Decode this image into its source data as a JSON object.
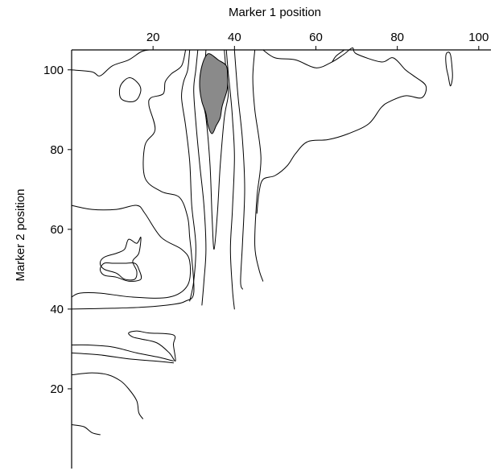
{
  "chart_data": {
    "type": "contour",
    "xlabel": "Marker 1 position",
    "ylabel": "Marker 2 position",
    "xlim": [
      0,
      103
    ],
    "ylim": [
      0,
      105
    ],
    "x_axis_position": "top",
    "x_ticks": [
      20,
      40,
      60,
      80,
      100
    ],
    "y_ticks": [
      20,
      40,
      60,
      80,
      100
    ],
    "grid": false,
    "peak_fill_color": "#8a8a8a",
    "contours": [
      {
        "name": "band-top-left",
        "closed": false,
        "points": [
          [
            0,
            100
          ],
          [
            5,
            99.5
          ],
          [
            7,
            98.5
          ],
          [
            10,
            101
          ],
          [
            14,
            102.5
          ],
          [
            17,
            104.5
          ],
          [
            19,
            105
          ]
        ]
      },
      {
        "name": "band-left-outer",
        "closed": false,
        "points": [
          [
            28,
            105
          ],
          [
            27,
            101
          ],
          [
            24.5,
            99
          ],
          [
            23,
            97
          ],
          [
            22.5,
            94
          ],
          [
            19.5,
            93
          ],
          [
            19,
            91
          ],
          [
            20.5,
            85
          ],
          [
            18,
            81
          ],
          [
            18,
            73
          ],
          [
            22,
            69.5
          ],
          [
            26.5,
            68
          ],
          [
            28.5,
            63
          ],
          [
            29,
            58
          ],
          [
            29.5,
            53
          ],
          [
            30,
            44
          ],
          [
            28,
            42
          ],
          [
            25,
            41.2
          ],
          [
            18,
            40.5
          ],
          [
            10,
            40.2
          ],
          [
            0,
            40
          ]
        ]
      },
      {
        "name": "band-left-inner",
        "closed": false,
        "points": [
          [
            0,
            43
          ],
          [
            2,
            44
          ],
          [
            7,
            44
          ],
          [
            15,
            43
          ],
          [
            24,
            43
          ],
          [
            28.5,
            46
          ],
          [
            29,
            52
          ],
          [
            27,
            55
          ],
          [
            22,
            58
          ],
          [
            18,
            64
          ],
          [
            16,
            66
          ],
          [
            11,
            65
          ],
          [
            5,
            65
          ],
          [
            0,
            66
          ]
        ]
      },
      {
        "name": "small-loop-left",
        "closed": true,
        "points": [
          [
            12,
            96
          ],
          [
            14,
            98
          ],
          [
            16,
            97
          ],
          [
            17,
            95
          ],
          [
            16,
            92.5
          ],
          [
            14,
            92
          ],
          [
            12,
            93
          ]
        ]
      },
      {
        "name": "band-mid-left-outer",
        "closed": false,
        "points": [
          [
            29,
            105
          ],
          [
            28.5,
            100
          ],
          [
            27.5,
            97
          ],
          [
            27,
            93
          ],
          [
            28,
            86
          ],
          [
            29,
            77
          ],
          [
            29.5,
            66
          ],
          [
            30.5,
            56
          ],
          [
            30,
            47
          ],
          [
            29,
            42
          ]
        ]
      },
      {
        "name": "band-mid-left-inner",
        "closed": false,
        "points": [
          [
            31,
            105
          ],
          [
            30.5,
            100
          ],
          [
            30,
            95
          ],
          [
            30.5,
            87
          ],
          [
            31.5,
            76
          ],
          [
            32.5,
            66
          ],
          [
            33,
            55
          ],
          [
            32.5,
            47
          ],
          [
            32,
            41
          ]
        ]
      },
      {
        "name": "band-center-left",
        "closed": false,
        "points": [
          [
            33,
            105
          ],
          [
            32.5,
            98
          ],
          [
            32,
            93
          ],
          [
            33,
            88
          ],
          [
            34,
            76
          ],
          [
            34.5,
            63
          ],
          [
            35,
            55
          ],
          [
            35.8,
            64
          ],
          [
            36.5,
            76
          ],
          [
            37.5,
            88
          ],
          [
            38.5,
            94
          ],
          [
            38,
            99
          ],
          [
            37.5,
            105
          ]
        ]
      },
      {
        "name": "band-center-right-outer",
        "closed": false,
        "points": [
          [
            38,
            105
          ],
          [
            38.5,
            99
          ],
          [
            39,
            94
          ],
          [
            39.5,
            88
          ],
          [
            40,
            78
          ],
          [
            39.5,
            65
          ],
          [
            39,
            55
          ],
          [
            39.5,
            45
          ],
          [
            40,
            40
          ]
        ]
      },
      {
        "name": "band-center-right-inner",
        "closed": false,
        "points": [
          [
            40,
            105
          ],
          [
            40.5,
            98
          ],
          [
            41,
            92
          ],
          [
            42,
            82
          ],
          [
            42.5,
            70
          ],
          [
            42,
            57
          ],
          [
            41.5,
            47
          ],
          [
            42,
            45
          ]
        ]
      },
      {
        "name": "band-right-edge",
        "closed": false,
        "points": [
          [
            45,
            105
          ],
          [
            44.5,
            98
          ],
          [
            45,
            90
          ],
          [
            46.5,
            78
          ],
          [
            45.5,
            68
          ],
          [
            45,
            56
          ],
          [
            46,
            50
          ],
          [
            47,
            47
          ]
        ]
      },
      {
        "name": "band-right-large",
        "closed": false,
        "points": [
          [
            47,
            105
          ],
          [
            50,
            103
          ],
          [
            55,
            102.5
          ],
          [
            60,
            100.5
          ],
          [
            64,
            102
          ],
          [
            67,
            104
          ],
          [
            69,
            105.5
          ],
          [
            70,
            104
          ],
          [
            76,
            102
          ],
          [
            79,
            103
          ],
          [
            82,
            100
          ],
          [
            84,
            98.5
          ],
          [
            87,
            96
          ],
          [
            86,
            93
          ],
          [
            82,
            93.5
          ],
          [
            78,
            92
          ],
          [
            76,
            90.5
          ],
          [
            73,
            86.5
          ],
          [
            68,
            84
          ],
          [
            63,
            82.5
          ],
          [
            58,
            82
          ],
          [
            55,
            79
          ],
          [
            53,
            76
          ],
          [
            50,
            73.5
          ],
          [
            47,
            72.5
          ],
          [
            46,
            69
          ],
          [
            45.5,
            64
          ]
        ]
      },
      {
        "name": "line-right-top",
        "closed": false,
        "points": [
          [
            67,
            105
          ],
          [
            65,
            103.5
          ],
          [
            64,
            102
          ]
        ]
      },
      {
        "name": "small-loop-right",
        "closed": true,
        "points": [
          [
            92,
            104
          ],
          [
            93,
            104
          ],
          [
            93.5,
            100
          ],
          [
            93.5,
            97.5
          ],
          [
            93,
            96
          ],
          [
            92.5,
            98.5
          ],
          [
            92,
            101
          ]
        ]
      },
      {
        "name": "loop-left-triangle",
        "closed": true,
        "points": [
          [
            7,
            51.5
          ],
          [
            8,
            53
          ],
          [
            11,
            54
          ],
          [
            13,
            55
          ],
          [
            14,
            57.5
          ],
          [
            16,
            56.5
          ],
          [
            17,
            58
          ],
          [
            16.5,
            54
          ],
          [
            15,
            52
          ],
          [
            16,
            49.5
          ],
          [
            15.5,
            47.5
          ],
          [
            13,
            47.5
          ],
          [
            11,
            49
          ],
          [
            8,
            50
          ]
        ]
      },
      {
        "name": "loop-left-lower",
        "closed": true,
        "points": [
          [
            7,
            50
          ],
          [
            8,
            48.5
          ],
          [
            11,
            48
          ],
          [
            14,
            47
          ],
          [
            17,
            47.5
          ],
          [
            16.5,
            50
          ],
          [
            15.5,
            51.5
          ],
          [
            13,
            51.5
          ],
          [
            10,
            51.5
          ],
          [
            8,
            51.5
          ]
        ]
      },
      {
        "name": "band-30-upper",
        "closed": false,
        "points": [
          [
            0,
            31
          ],
          [
            4,
            31
          ],
          [
            10,
            30.5
          ],
          [
            16,
            29
          ],
          [
            21,
            28
          ],
          [
            25,
            27
          ]
        ]
      },
      {
        "name": "band-30-lower",
        "closed": false,
        "points": [
          [
            0,
            29
          ],
          [
            7,
            28.5
          ],
          [
            14,
            27.5
          ],
          [
            20,
            27
          ],
          [
            25,
            26.5
          ]
        ]
      },
      {
        "name": "loop-30-right",
        "closed": true,
        "points": [
          [
            14,
            34
          ],
          [
            16,
            34.5
          ],
          [
            19,
            34
          ],
          [
            25,
            33.5
          ],
          [
            25,
            31
          ],
          [
            25.5,
            27
          ],
          [
            24,
            29
          ],
          [
            21,
            31.5
          ],
          [
            17,
            32.5
          ],
          [
            15,
            33
          ]
        ]
      },
      {
        "name": "band-24",
        "closed": false,
        "points": [
          [
            0,
            23.5
          ],
          [
            5,
            24
          ],
          [
            9,
            23.5
          ],
          [
            12,
            22
          ],
          [
            14,
            20
          ],
          [
            16,
            17
          ],
          [
            16.5,
            14
          ],
          [
            17.5,
            12.5
          ]
        ]
      },
      {
        "name": "band-11",
        "closed": false,
        "points": [
          [
            0,
            11
          ],
          [
            3,
            10.5
          ],
          [
            5,
            9
          ],
          [
            7,
            8.5
          ]
        ]
      }
    ],
    "peak_region": {
      "name": "peak-core",
      "closed": true,
      "points": [
        [
          33,
          103.5
        ],
        [
          34,
          104
        ],
        [
          36,
          102.5
        ],
        [
          38,
          101
        ],
        [
          38.3,
          98
        ],
        [
          38.2,
          95
        ],
        [
          37,
          91
        ],
        [
          36.5,
          88
        ],
        [
          35.5,
          86
        ],
        [
          34.5,
          84
        ],
        [
          33.5,
          86
        ],
        [
          33,
          89
        ],
        [
          32,
          92
        ],
        [
          31.5,
          95
        ],
        [
          31.5,
          98
        ],
        [
          32,
          101
        ]
      ]
    }
  }
}
